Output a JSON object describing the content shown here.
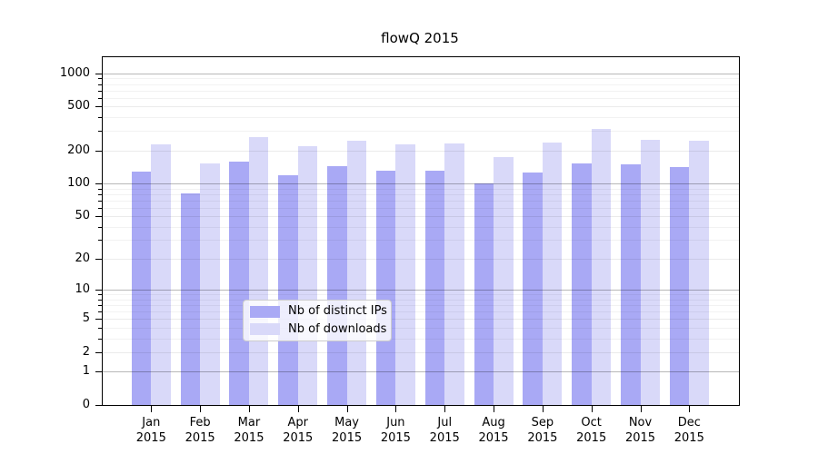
{
  "title": "flowQ 2015",
  "chart_data": {
    "type": "bar",
    "title": "flowQ 2015",
    "categories": [
      "Jan 2015",
      "Feb 2015",
      "Mar 2015",
      "Apr 2015",
      "May 2015",
      "Jun 2015",
      "Jul 2015",
      "Aug 2015",
      "Sep 2015",
      "Oct 2015",
      "Nov 2015",
      "Dec 2015"
    ],
    "series": [
      {
        "name": "Nb of distinct IPs",
        "color": "#a9a9f5",
        "values": [
          128,
          81,
          157,
          119,
          144,
          131,
          131,
          101,
          126,
          152,
          148,
          141
        ]
      },
      {
        "name": "Nb of downloads",
        "color": "#d9d9f9",
        "values": [
          227,
          151,
          265,
          219,
          246,
          225,
          230,
          174,
          238,
          314,
          250,
          247
        ]
      }
    ],
    "xlabel": "",
    "ylabel": "",
    "yscale": "log1p",
    "ylim": [
      0,
      1400
    ],
    "ytick_values": [
      0,
      1,
      2,
      5,
      10,
      20,
      50,
      100,
      200,
      500,
      1000
    ],
    "ytick_labels": [
      "0",
      "1",
      "2",
      "5",
      "10",
      "20",
      "50",
      "100",
      "200",
      "500",
      "1000"
    ],
    "decade_gridline_values": [
      1,
      10,
      100,
      1000
    ],
    "minor_gridline_values": [
      3,
      4,
      6,
      7,
      8,
      9,
      30,
      40,
      60,
      70,
      80,
      90,
      300,
      400,
      600,
      700,
      800,
      900
    ],
    "grid": "both",
    "grid_color_decade": "rgba(0,0,0,0.28)",
    "grid_color_major": "rgba(0,0,0,0.08)",
    "grid_color_minor": "rgba(0,0,0,0.05)",
    "legend_position": "bottom-center",
    "legend": {
      "items": [
        {
          "label": "Nb of distinct IPs",
          "color": "#a9a9f5"
        },
        {
          "label": "Nb of downloads",
          "color": "#d9d9f9"
        }
      ]
    }
  }
}
